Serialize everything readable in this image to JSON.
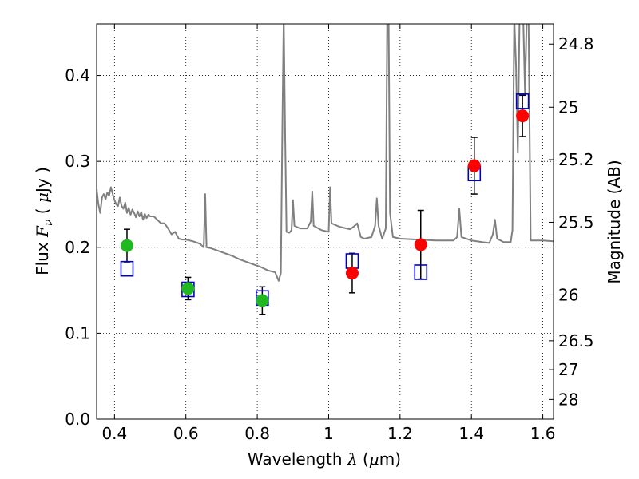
{
  "chart_data": {
    "type": "scatter",
    "xlabel": {
      "prefix": "Wavelength  ",
      "symbol": "λ",
      "suffix": " (",
      "unit_mu": "μ",
      "unit_rest": "m)"
    },
    "ylabel": {
      "prefix": "Flux  ",
      "symbol": "F",
      "sub": "ν",
      "suffix": "  ( ",
      "unit_mu": "μ",
      "unit_rest": "Jy )"
    },
    "y2label": "Magnitude (AB)",
    "xlim": [
      0.35,
      1.63
    ],
    "ylim": [
      0.0,
      0.46
    ],
    "x_ticks": [
      {
        "value": 0.4,
        "label": "0.4"
      },
      {
        "value": 0.6,
        "label": "0.6"
      },
      {
        "value": 0.8,
        "label": "0.8"
      },
      {
        "value": 1.0,
        "label": "1"
      },
      {
        "value": 1.2,
        "label": "1.2"
      },
      {
        "value": 1.4,
        "label": "1.4"
      },
      {
        "value": 1.6,
        "label": "1.6"
      }
    ],
    "y_ticks": [
      {
        "value": 0.0,
        "label": "0.0"
      },
      {
        "value": 0.1,
        "label": "0.1"
      },
      {
        "value": 0.2,
        "label": "0.2"
      },
      {
        "value": 0.3,
        "label": "0.3"
      },
      {
        "value": 0.4,
        "label": "0.4"
      }
    ],
    "y2_ticks": [
      {
        "value": 24.8,
        "label": "24.8"
      },
      {
        "value": 25.0,
        "label": "25"
      },
      {
        "value": 25.2,
        "label": "25.2"
      },
      {
        "value": 25.5,
        "label": "25.5"
      },
      {
        "value": 26.0,
        "label": "26"
      },
      {
        "value": 26.5,
        "label": "26.5"
      },
      {
        "value": 27.0,
        "label": "27"
      },
      {
        "value": 28.0,
        "label": "28"
      }
    ],
    "grid": true,
    "colors": {
      "green": "#1fb81f",
      "red": "#ff0000",
      "blue": "#0000cc",
      "spectrum": "#808080",
      "errorbar": "#000000"
    },
    "series": [
      {
        "marker": "circle",
        "color": "green",
        "points": [
          {
            "x": 0.435,
            "y": 0.202,
            "err": 0.019
          },
          {
            "x": 0.606,
            "y": 0.152,
            "err": 0.013
          },
          {
            "x": 0.814,
            "y": 0.138,
            "err": 0.016
          }
        ]
      },
      {
        "marker": "circle",
        "color": "red",
        "points": [
          {
            "x": 1.066,
            "y": 0.17,
            "err": 0.023
          },
          {
            "x": 1.258,
            "y": 0.203,
            "err": 0.04
          },
          {
            "x": 1.408,
            "y": 0.295,
            "err": 0.033
          },
          {
            "x": 1.543,
            "y": 0.353,
            "err": 0.024
          }
        ]
      },
      {
        "marker": "square",
        "color": "blue",
        "points": [
          {
            "x": 0.435,
            "y": 0.175
          },
          {
            "x": 0.606,
            "y": 0.151
          },
          {
            "x": 0.814,
            "y": 0.141
          },
          {
            "x": 1.066,
            "y": 0.184
          },
          {
            "x": 1.258,
            "y": 0.171
          },
          {
            "x": 1.408,
            "y": 0.286
          },
          {
            "x": 1.543,
            "y": 0.37
          }
        ]
      },
      {
        "type": "line",
        "color": "spectrum",
        "points": [
          [
            0.35,
            0.268
          ],
          [
            0.355,
            0.25
          ],
          [
            0.36,
            0.24
          ],
          [
            0.365,
            0.258
          ],
          [
            0.37,
            0.262
          ],
          [
            0.375,
            0.256
          ],
          [
            0.38,
            0.264
          ],
          [
            0.385,
            0.26
          ],
          [
            0.39,
            0.27
          ],
          [
            0.395,
            0.262
          ],
          [
            0.4,
            0.255
          ],
          [
            0.405,
            0.25
          ],
          [
            0.41,
            0.248
          ],
          [
            0.415,
            0.258
          ],
          [
            0.42,
            0.248
          ],
          [
            0.425,
            0.245
          ],
          [
            0.43,
            0.252
          ],
          [
            0.435,
            0.24
          ],
          [
            0.44,
            0.246
          ],
          [
            0.445,
            0.238
          ],
          [
            0.45,
            0.244
          ],
          [
            0.455,
            0.24
          ],
          [
            0.46,
            0.235
          ],
          [
            0.465,
            0.242
          ],
          [
            0.47,
            0.236
          ],
          [
            0.475,
            0.241
          ],
          [
            0.48,
            0.232
          ],
          [
            0.485,
            0.239
          ],
          [
            0.49,
            0.234
          ],
          [
            0.495,
            0.238
          ],
          [
            0.5,
            0.236
          ],
          [
            0.51,
            0.236
          ],
          [
            0.52,
            0.232
          ],
          [
            0.53,
            0.228
          ],
          [
            0.54,
            0.228
          ],
          [
            0.55,
            0.222
          ],
          [
            0.56,
            0.215
          ],
          [
            0.57,
            0.218
          ],
          [
            0.58,
            0.21
          ],
          [
            0.59,
            0.209
          ],
          [
            0.6,
            0.209
          ],
          [
            0.62,
            0.207
          ],
          [
            0.64,
            0.204
          ],
          [
            0.65,
            0.2
          ],
          [
            0.654,
            0.262
          ],
          [
            0.658,
            0.2
          ],
          [
            0.67,
            0.199
          ],
          [
            0.69,
            0.196
          ],
          [
            0.71,
            0.193
          ],
          [
            0.73,
            0.19
          ],
          [
            0.75,
            0.186
          ],
          [
            0.77,
            0.183
          ],
          [
            0.79,
            0.18
          ],
          [
            0.81,
            0.177
          ],
          [
            0.83,
            0.173
          ],
          [
            0.85,
            0.171
          ],
          [
            0.86,
            0.161
          ],
          [
            0.866,
            0.17
          ],
          [
            0.87,
            0.33
          ],
          [
            0.874,
            0.47
          ],
          [
            0.878,
            0.33
          ],
          [
            0.882,
            0.218
          ],
          [
            0.89,
            0.217
          ],
          [
            0.896,
            0.22
          ],
          [
            0.9,
            0.255
          ],
          [
            0.904,
            0.225
          ],
          [
            0.92,
            0.222
          ],
          [
            0.94,
            0.222
          ],
          [
            0.95,
            0.23
          ],
          [
            0.954,
            0.265
          ],
          [
            0.958,
            0.225
          ],
          [
            0.98,
            0.22
          ],
          [
            1.0,
            0.218
          ],
          [
            1.004,
            0.27
          ],
          [
            1.008,
            0.228
          ],
          [
            1.03,
            0.224
          ],
          [
            1.05,
            0.222
          ],
          [
            1.06,
            0.221
          ],
          [
            1.07,
            0.224
          ],
          [
            1.08,
            0.228
          ],
          [
            1.09,
            0.212
          ],
          [
            1.1,
            0.21
          ],
          [
            1.12,
            0.212
          ],
          [
            1.13,
            0.225
          ],
          [
            1.135,
            0.257
          ],
          [
            1.14,
            0.225
          ],
          [
            1.15,
            0.21
          ],
          [
            1.16,
            0.222
          ],
          [
            1.164,
            0.47
          ],
          [
            1.168,
            0.47
          ],
          [
            1.172,
            0.24
          ],
          [
            1.18,
            0.212
          ],
          [
            1.2,
            0.21
          ],
          [
            1.25,
            0.209
          ],
          [
            1.3,
            0.208
          ],
          [
            1.35,
            0.208
          ],
          [
            1.36,
            0.212
          ],
          [
            1.366,
            0.245
          ],
          [
            1.372,
            0.212
          ],
          [
            1.4,
            0.208
          ],
          [
            1.43,
            0.206
          ],
          [
            1.45,
            0.205
          ],
          [
            1.46,
            0.215
          ],
          [
            1.466,
            0.232
          ],
          [
            1.472,
            0.21
          ],
          [
            1.49,
            0.206
          ],
          [
            1.51,
            0.206
          ],
          [
            1.515,
            0.22
          ],
          [
            1.52,
            0.47
          ],
          [
            1.525,
            0.41
          ],
          [
            1.53,
            0.31
          ],
          [
            1.535,
            0.47
          ],
          [
            1.545,
            0.47
          ],
          [
            1.55,
            0.38
          ],
          [
            1.555,
            0.47
          ],
          [
            1.56,
            0.47
          ],
          [
            1.566,
            0.208
          ],
          [
            1.6,
            0.208
          ],
          [
            1.63,
            0.207
          ]
        ]
      }
    ]
  }
}
